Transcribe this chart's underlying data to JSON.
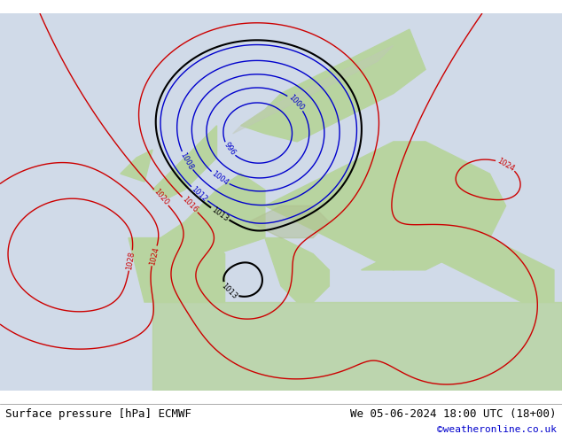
{
  "title_left": "Surface pressure [hPa] ECMWF",
  "title_right": "We 05-06-2024 18:00 UTC (18+00)",
  "credit": "©weatheronline.co.uk",
  "bg_color": "#d0d8e8",
  "land_color_green": "#b8d4a0",
  "land_color_gray": "#c8c8c8",
  "sea_color": "#d8e4f0",
  "title_fontsize": 9,
  "credit_fontsize": 8,
  "credit_color": "#0000cc",
  "contour_blue_color": "#0000cc",
  "contour_red_color": "#cc0000",
  "contour_black_color": "#000000",
  "label_fontsize": 7,
  "figsize": [
    6.34,
    4.9
  ],
  "dpi": 100
}
